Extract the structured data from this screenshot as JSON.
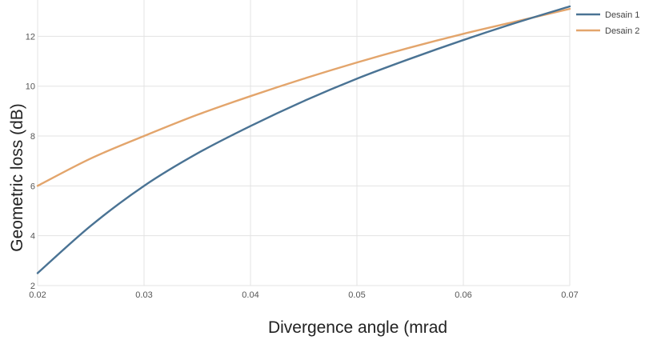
{
  "chart_data": {
    "type": "line",
    "title": "",
    "xlabel": "Divergence angle (mrad",
    "ylabel": "Geometric loss (dB)",
    "xlim": [
      0.02,
      0.07
    ],
    "ylim": [
      2,
      13.2
    ],
    "grid": true,
    "legend_position": "top-right",
    "x_ticks": [
      "0.02",
      "0.03",
      "0.04",
      "0.05",
      "0.06",
      "0.07"
    ],
    "y_ticks": [
      "2",
      "4",
      "6",
      "8",
      "10",
      "12"
    ],
    "x": [
      0.02,
      0.025,
      0.03,
      0.035,
      0.04,
      0.045,
      0.05,
      0.055,
      0.06,
      0.065,
      0.07
    ],
    "series": [
      {
        "name": "Desain 1",
        "color": "#4a7394",
        "values": [
          2.5,
          4.4,
          6.0,
          7.3,
          8.4,
          9.4,
          10.3,
          11.1,
          11.85,
          12.55,
          13.2
        ]
      },
      {
        "name": "Desain 2",
        "color": "#e3a56c",
        "values": [
          6.0,
          7.1,
          8.0,
          8.85,
          9.6,
          10.3,
          10.95,
          11.55,
          12.1,
          12.6,
          13.1
        ]
      }
    ]
  }
}
